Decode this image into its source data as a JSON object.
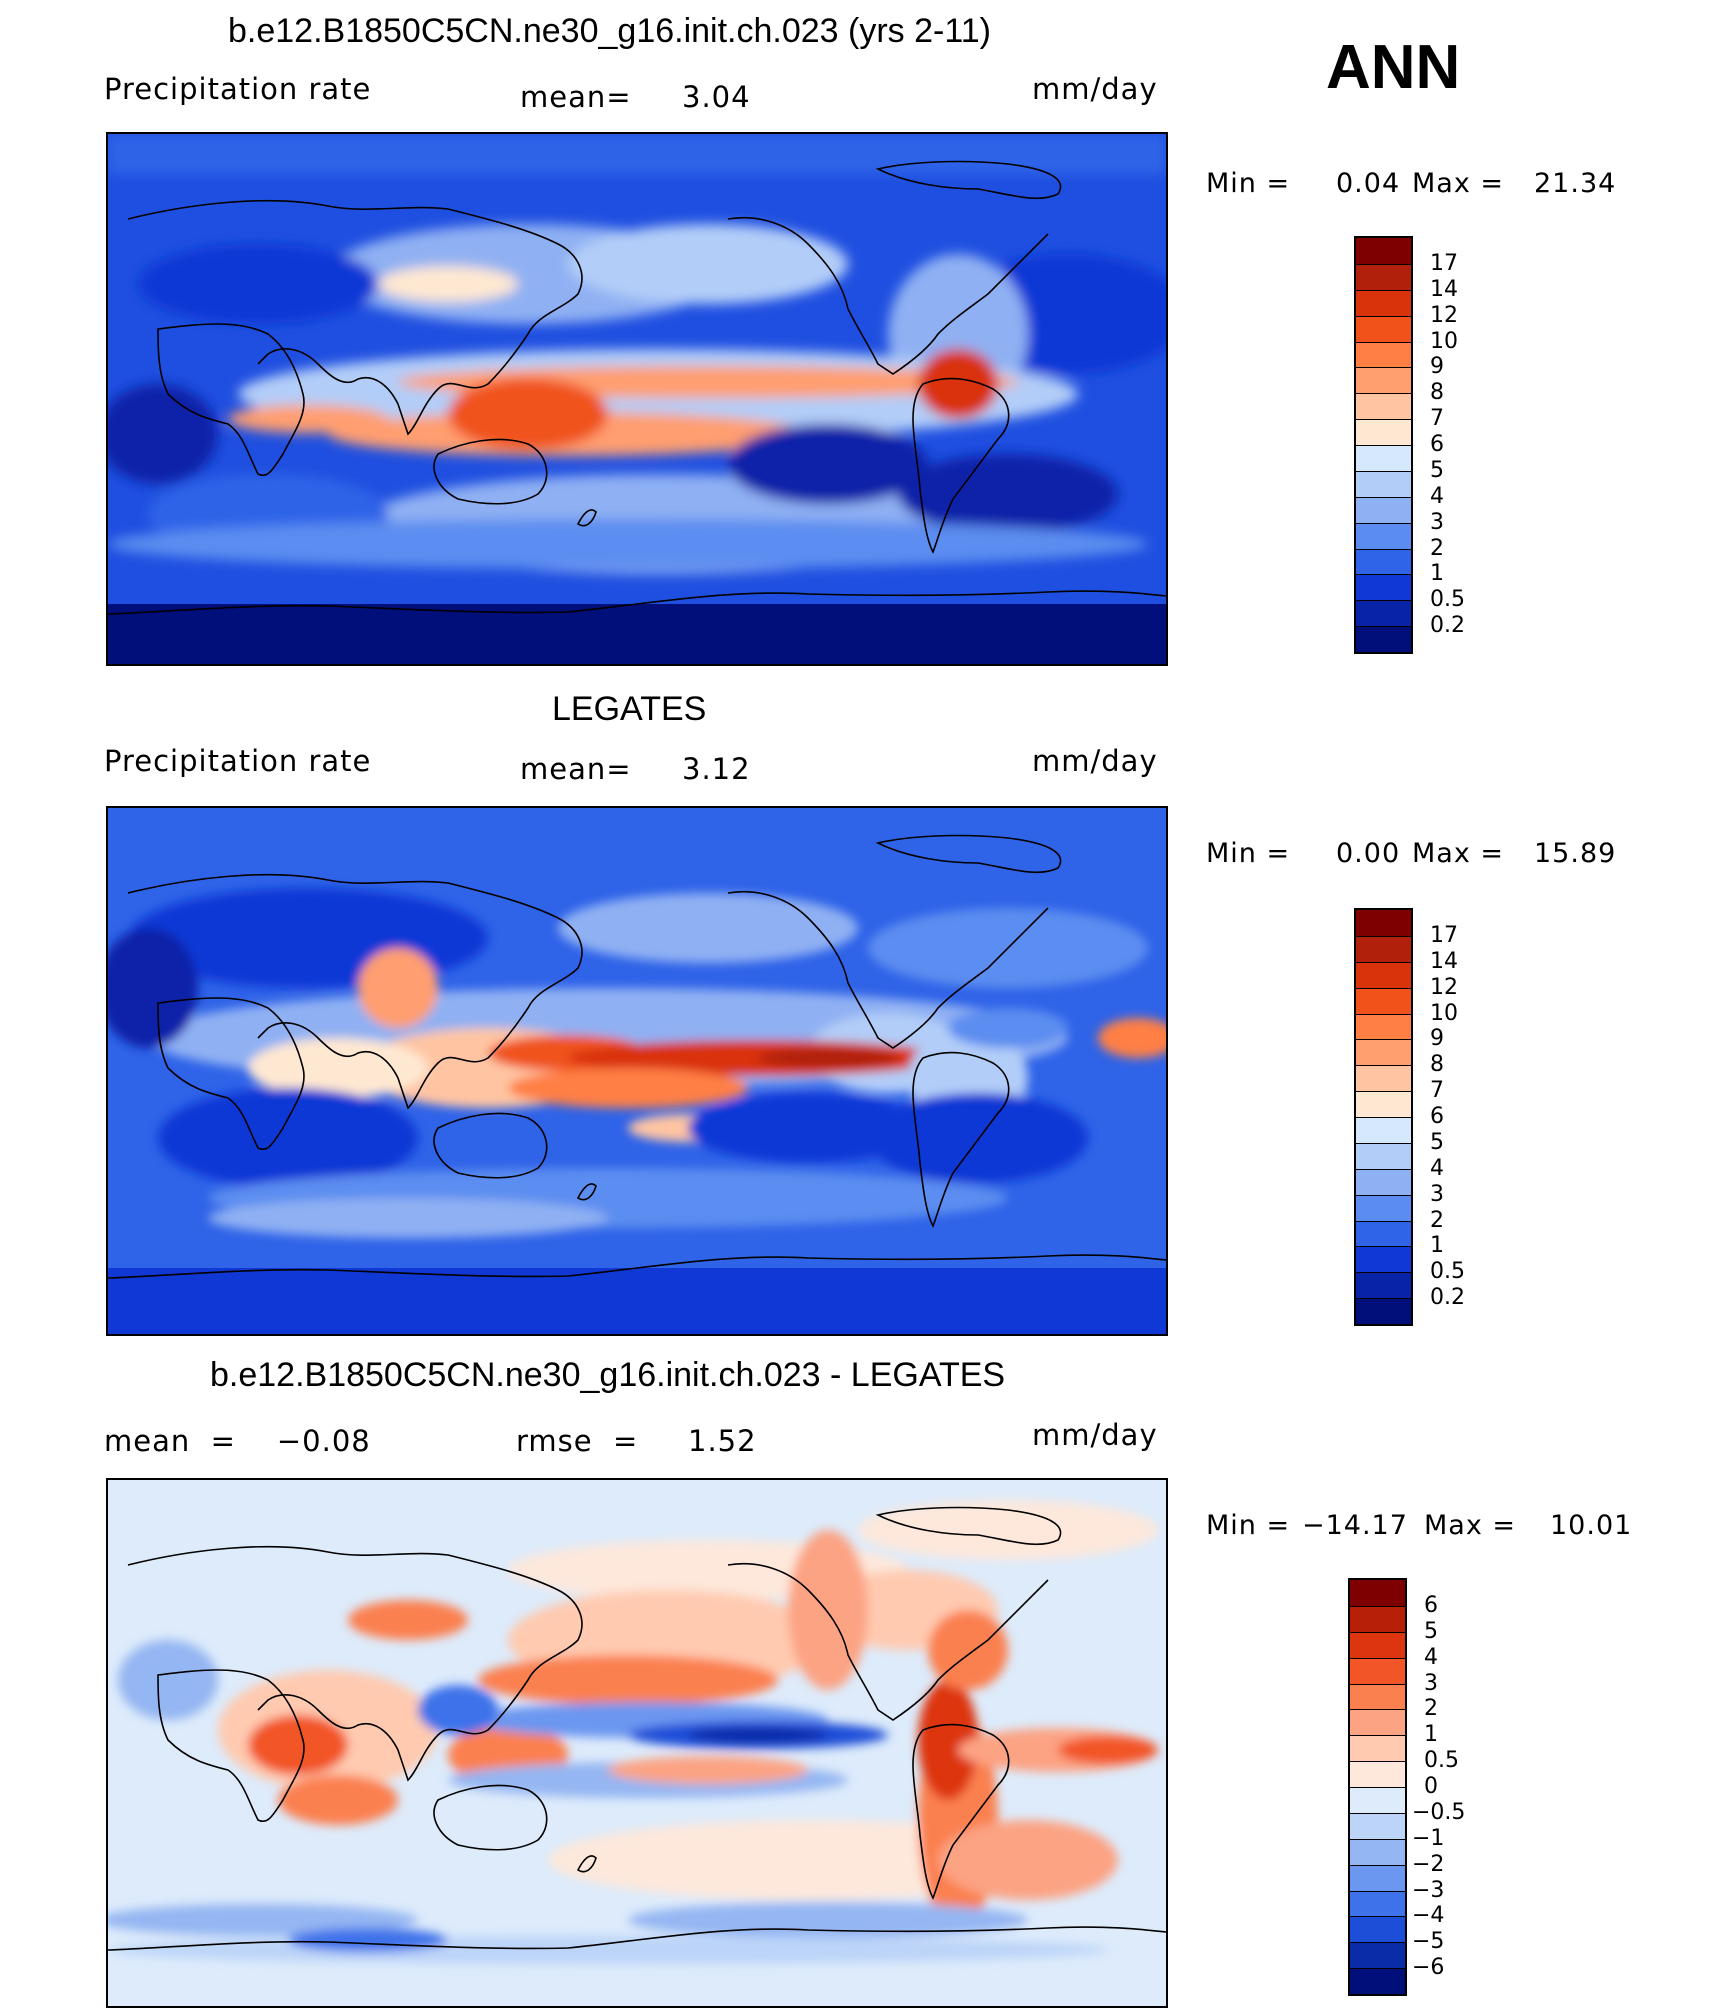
{
  "figure": {
    "season": "ANN"
  },
  "panels": [
    {
      "title": "b.e12.B1850C5CN.ne30_g16.init.ch.023 (yrs 2-11)",
      "left_label": "Precipitation  rate",
      "center_label": "mean=",
      "center_value": "3.04",
      "units": "mm/day",
      "min_label": "Min  =",
      "min_value": "0.04",
      "max_label": "Max  =",
      "max_value": "21.34",
      "legend_labels": [
        "17",
        "14",
        "12",
        "10",
        "9",
        "8",
        "7",
        "6",
        "5",
        "4",
        "3",
        "2",
        "1",
        "0.5",
        "0.2"
      ],
      "legend_colors": [
        "#7f0000",
        "#b0200a",
        "#d9330c",
        "#f0521a",
        "#ff7f45",
        "#ff9e6f",
        "#ffc5a3",
        "#ffe8d2",
        "#d6e8fb",
        "#b2cdf8",
        "#8fb0f3",
        "#5b8df0",
        "#2f63e8",
        "#1038d5",
        "#0822a8",
        "#000f7a"
      ]
    },
    {
      "title": "LEGATES",
      "left_label": "Precipitation  rate",
      "center_label": "mean=",
      "center_value": "3.12",
      "units": "mm/day",
      "min_label": "Min  =",
      "min_value": "0.00",
      "max_label": "Max  =",
      "max_value": "15.89",
      "legend_labels": [
        "17",
        "14",
        "12",
        "10",
        "9",
        "8",
        "7",
        "6",
        "5",
        "4",
        "3",
        "2",
        "1",
        "0.5",
        "0.2"
      ],
      "legend_colors": [
        "#7f0000",
        "#b0200a",
        "#d9330c",
        "#f0521a",
        "#ff7f45",
        "#ff9e6f",
        "#ffc5a3",
        "#ffe8d2",
        "#d6e8fb",
        "#b2cdf8",
        "#8fb0f3",
        "#5b8df0",
        "#2f63e8",
        "#1038d5",
        "#0822a8",
        "#000f7a"
      ]
    },
    {
      "title": "b.e12.B1850C5CN.ne30_g16.init.ch.023 - LEGATES",
      "left_label": "mean  =    −0.08",
      "center_label": "rmse  =",
      "center_value": "1.52",
      "units": "mm/day",
      "min_label": "Min  =",
      "min_value": "−14.17",
      "max_label": "Max  =",
      "max_value": "10.01",
      "legend_labels": [
        "6",
        "5",
        "4",
        "3",
        "2",
        "1",
        "0.5",
        "0",
        "−0.5",
        "−1",
        "−2",
        "−3",
        "−4",
        "−5",
        "−6"
      ],
      "legend_colors": [
        "#7f0000",
        "#b81f08",
        "#dd3510",
        "#f25526",
        "#fb8050",
        "#fca383",
        "#ffcab0",
        "#fde8db",
        "#ddebfb",
        "#bcd4f8",
        "#94b6f2",
        "#6c97f0",
        "#3e72ea",
        "#1c4ed8",
        "#0a2ca8",
        "#000f7a"
      ]
    }
  ],
  "chart_data": [
    {
      "type": "heatmap",
      "title": "b.e12.B1850C5CN.ne30_g16.init.ch.023 (yrs 2-11)",
      "variable": "Precipitation  rate",
      "units": "mm/day",
      "mean": 3.04,
      "min": 0.04,
      "max": 21.34,
      "contour_levels": [
        0.2,
        0.5,
        1,
        2,
        3,
        4,
        5,
        6,
        7,
        8,
        9,
        10,
        12,
        14,
        17
      ]
    },
    {
      "type": "heatmap",
      "title": "LEGATES",
      "variable": "Precipitation  rate",
      "units": "mm/day",
      "mean": 3.12,
      "min": 0.0,
      "max": 15.89,
      "contour_levels": [
        0.2,
        0.5,
        1,
        2,
        3,
        4,
        5,
        6,
        7,
        8,
        9,
        10,
        12,
        14,
        17
      ]
    },
    {
      "type": "heatmap",
      "title": "b.e12.B1850C5CN.ne30_g16.init.ch.023 - LEGATES",
      "units": "mm/day",
      "mean": -0.08,
      "rmse": 1.52,
      "min": -14.17,
      "max": 10.01,
      "contour_levels": [
        -6,
        -5,
        -4,
        -3,
        -2,
        -1,
        -0.5,
        0,
        0.5,
        1,
        2,
        3,
        4,
        5,
        6
      ]
    }
  ]
}
